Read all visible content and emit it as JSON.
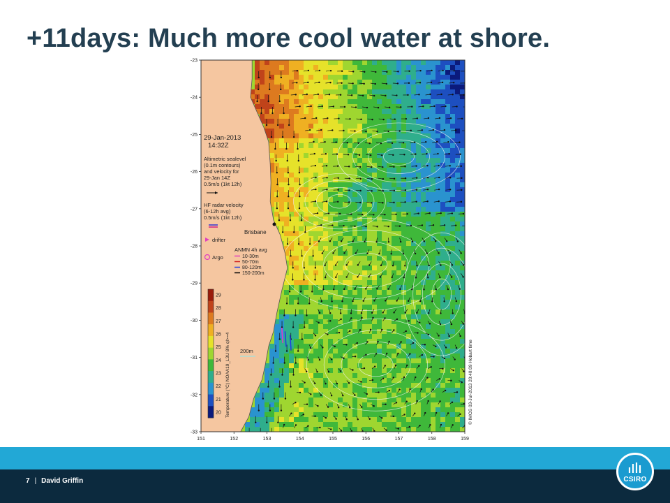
{
  "slide": {
    "title": "+11days: Much more cool water at shore.",
    "page_number": "7",
    "separator": "|",
    "author": "David Griffin",
    "logo_text": "CSIRO"
  },
  "map": {
    "lat_ticks": [
      "-23",
      "-24",
      "-25",
      "-26",
      "-27",
      "-28",
      "-29",
      "-30",
      "-31",
      "-32",
      "-33"
    ],
    "lon_ticks": [
      "151",
      "152",
      "153",
      "154",
      "155",
      "156",
      "157",
      "158",
      "159"
    ],
    "date": "29-Jan-2013",
    "time": "14:32Z",
    "legend_altimetry": [
      "Altimetric sealevel",
      "(0.1m contours)",
      "and velocity for",
      "29-Jan 14Z",
      "0.5m/s (1kt 12h)"
    ],
    "legend_hf": [
      "HF radar velocity",
      "(6-12h avg)",
      "0.5m/s (1kt 12h)"
    ],
    "drifter_label": "drifter",
    "argo_label": "Argo",
    "place_label": "Brisbane",
    "anmn_title": "ANMN 4h avg",
    "anmn_items": [
      {
        "label": "10-30m",
        "color": "#e040c0"
      },
      {
        "label": "50-70m",
        "color": "#d02020"
      },
      {
        "label": "80-120m",
        "color": "#2040e0"
      },
      {
        "label": "150-200m",
        "color": "#000000"
      }
    ],
    "depth_label": "200m",
    "colorbar_ticks": [
      "29",
      "28",
      "27",
      "26",
      "25",
      "24",
      "23",
      "22",
      "21",
      "20"
    ],
    "colorbar_colors": [
      "#9a1b0a",
      "#c0431a",
      "#dd7a1f",
      "#efb022",
      "#e6e22a",
      "#9fd630",
      "#3fb83a",
      "#2fae8c",
      "#2a93cf",
      "#1d4fc0",
      "#0b1a7c"
    ],
    "colorbar_label": "Temperature (°C) NOAA19_L3U 8% ql>=4",
    "credit": "© IMOS 03-Jul-2013 20:40:09 Hobart time",
    "colors": {
      "land": "#f5c6a0",
      "coast": "#555555",
      "contour": "#f4f4f4",
      "arrow": "#111111"
    }
  }
}
